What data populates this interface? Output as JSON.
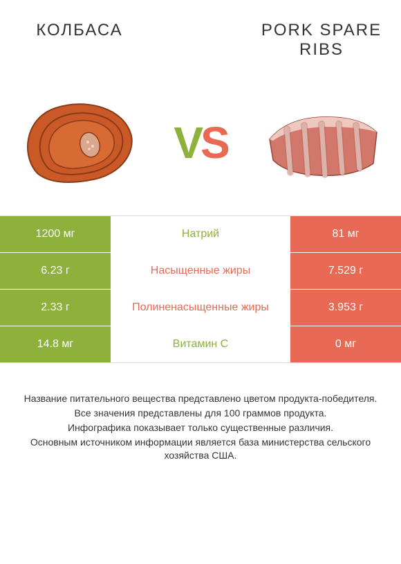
{
  "colors": {
    "product_a": "#8db13b",
    "product_b": "#e86a54",
    "vs_v": "#8db13b",
    "vs_s": "#e86a54",
    "background": "#ffffff",
    "text": "#333333",
    "row_border": "#ffffff"
  },
  "header": {
    "product_a": "КОЛБАСА",
    "product_b": "PORK SPARE RIBS"
  },
  "vs": {
    "v": "V",
    "s": "S"
  },
  "rows": [
    {
      "left": "1200 мг",
      "label": "Натрий",
      "right": "81 мг",
      "winner": "a"
    },
    {
      "left": "6.23 г",
      "label": "Насыщенные жиры",
      "right": "7.529 г",
      "winner": "b"
    },
    {
      "left": "2.33 г",
      "label": "Полиненасыщенные жиры",
      "right": "3.953 г",
      "winner": "b"
    },
    {
      "left": "14.8 мг",
      "label": "Витамин C",
      "right": "0 мг",
      "winner": "a"
    }
  ],
  "footer": [
    "Название питательного вещества представлено цветом продукта-победителя.",
    "Все значения представлены для 100 граммов продукта.",
    "Инфографика показывает только существенные различия.",
    "Основным источником информации является база министерства сельского хозяйства США."
  ]
}
